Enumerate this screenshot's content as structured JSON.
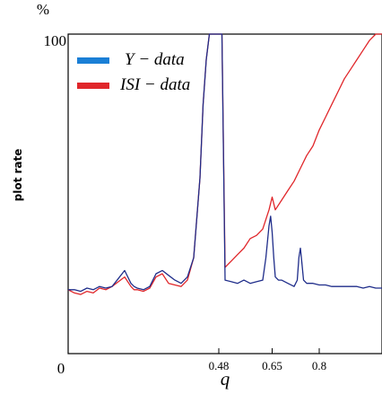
{
  "chart_data": {
    "type": "line",
    "title": "",
    "y_unit": "%",
    "ylabel": "plot rate",
    "xlabel": "q",
    "xlim": [
      0,
      1
    ],
    "ylim": [
      0,
      100
    ],
    "xticks": [
      {
        "value": 0,
        "label": "0"
      },
      {
        "value": 0.48,
        "label": "0.48"
      },
      {
        "value": 0.65,
        "label": "0.65"
      },
      {
        "value": 0.8,
        "label": "0.8"
      }
    ],
    "yticks": [
      {
        "value": 100,
        "label": "100"
      }
    ],
    "legend_position": "top-left",
    "series": [
      {
        "name": "Y − data",
        "color": "#1f2d8a",
        "legend_color": "#1a7fd6",
        "x": [
          0.0,
          0.02,
          0.04,
          0.06,
          0.08,
          0.1,
          0.12,
          0.14,
          0.16,
          0.18,
          0.2,
          0.21,
          0.22,
          0.24,
          0.26,
          0.28,
          0.3,
          0.32,
          0.34,
          0.36,
          0.38,
          0.4,
          0.42,
          0.43,
          0.44,
          0.45,
          0.46,
          0.47,
          0.48,
          0.49,
          0.5,
          0.52,
          0.54,
          0.56,
          0.58,
          0.6,
          0.62,
          0.63,
          0.64,
          0.645,
          0.65,
          0.655,
          0.66,
          0.67,
          0.68,
          0.7,
          0.72,
          0.73,
          0.735,
          0.74,
          0.745,
          0.75,
          0.76,
          0.78,
          0.8,
          0.82,
          0.84,
          0.86,
          0.88,
          0.9,
          0.92,
          0.94,
          0.96,
          0.98,
          1.0
        ],
        "y": [
          20,
          20,
          19.5,
          20.5,
          20,
          21,
          20.5,
          21,
          23.5,
          26,
          22,
          21,
          20.5,
          20,
          21,
          25,
          26,
          24.5,
          23,
          22,
          24,
          30,
          55,
          78,
          92,
          100,
          100,
          100,
          100,
          100,
          23,
          22.5,
          22,
          23,
          22,
          22.5,
          23,
          30,
          40,
          43,
          38,
          30,
          24,
          23,
          23,
          22,
          21,
          23,
          30,
          33,
          28,
          23,
          22,
          22,
          21.5,
          21.5,
          21,
          21,
          21,
          21,
          21,
          20.5,
          21,
          20.5,
          20.5
        ]
      },
      {
        "name": "ISI − data",
        "color": "#e0262a",
        "legend_color": "#e0262a",
        "x": [
          0.0,
          0.02,
          0.04,
          0.06,
          0.08,
          0.1,
          0.12,
          0.14,
          0.16,
          0.18,
          0.2,
          0.21,
          0.22,
          0.24,
          0.26,
          0.28,
          0.3,
          0.32,
          0.34,
          0.36,
          0.38,
          0.4,
          0.42,
          0.43,
          0.44,
          0.45,
          0.46,
          0.47,
          0.48,
          0.49,
          0.5,
          0.52,
          0.54,
          0.56,
          0.58,
          0.6,
          0.62,
          0.64,
          0.65,
          0.66,
          0.68,
          0.7,
          0.72,
          0.74,
          0.76,
          0.78,
          0.8,
          0.82,
          0.84,
          0.86,
          0.88,
          0.9,
          0.92,
          0.94,
          0.96,
          0.98,
          1.0
        ],
        "y": [
          20,
          19,
          18.5,
          19.5,
          19,
          20.5,
          20,
          21,
          22.5,
          24,
          21,
          20,
          20,
          19.5,
          20.5,
          24,
          25,
          22,
          21.5,
          21,
          23,
          30,
          55,
          78,
          92,
          100,
          100,
          100,
          100,
          100,
          27,
          29,
          31,
          33,
          36,
          37,
          39,
          45,
          49,
          45,
          48,
          51,
          54,
          58,
          62,
          65,
          70,
          74,
          78,
          82,
          86,
          89,
          92,
          95,
          98,
          100,
          100
        ]
      }
    ]
  }
}
